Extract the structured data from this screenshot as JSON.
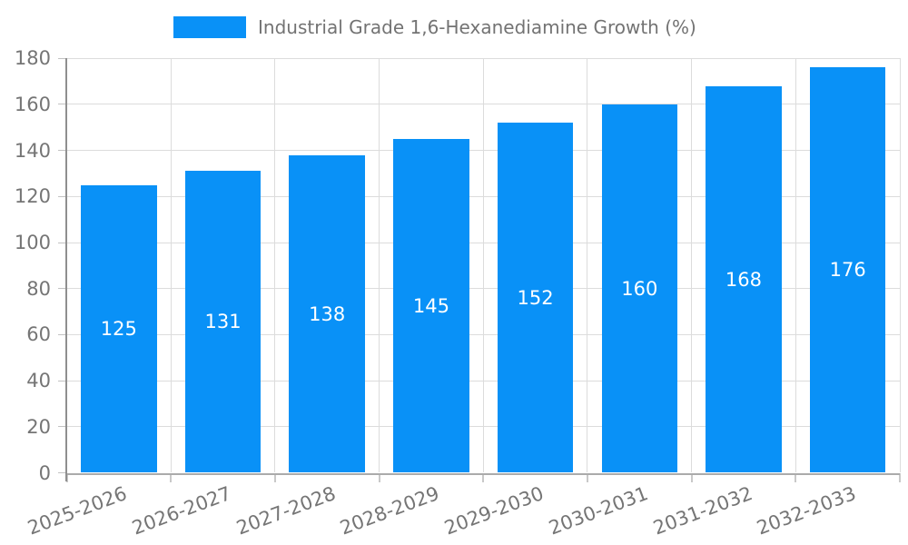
{
  "legend": {
    "label": "Industrial Grade 1,6-Hexanediamine Growth (%)"
  },
  "chart_data": {
    "type": "bar",
    "title": "Industrial Grade 1,6-Hexanediamine Growth (%)",
    "categories": [
      "2025-2026",
      "2026-2027",
      "2027-2028",
      "2028-2029",
      "2029-2030",
      "2030-2031",
      "2031-2032",
      "2032-2033"
    ],
    "values": [
      125,
      131,
      138,
      145,
      152,
      160,
      168,
      176
    ],
    "xlabel": "",
    "ylabel": "",
    "ylim": [
      0,
      180
    ],
    "ytick_step": 20,
    "yticks": [
      0,
      20,
      40,
      60,
      80,
      100,
      120,
      140,
      160,
      180
    ],
    "grid": true,
    "legend_position": "top-center",
    "value_labels": "centered-inside-bars",
    "x_label_rotation_deg": -20.5,
    "colors": {
      "bar": "#0991F7",
      "value_label": "#FFFFFF",
      "tick_label": "#757575",
      "legend_label": "#737373",
      "gridline": "#DCDCDC",
      "y_tick_mark": "#C2C2C2",
      "x_tick_mark": "#C9C9C9",
      "y_axis_line": "#8F8F8F",
      "x_axis_line": "#ABABAB"
    }
  }
}
